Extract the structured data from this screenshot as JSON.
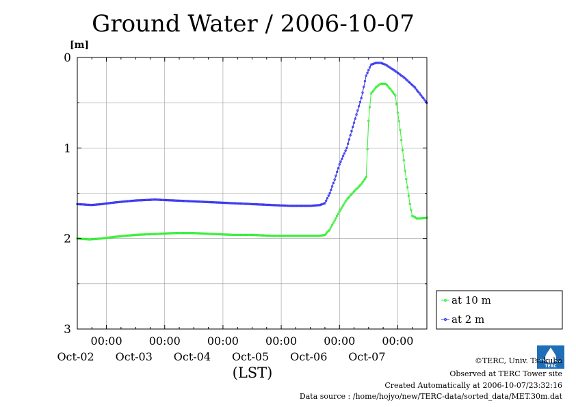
{
  "chart_data": {
    "type": "line",
    "title": "Ground Water / 2006-10-07",
    "ylabel": "[m]",
    "xlabel": "(LST)",
    "ylim": [
      3,
      0
    ],
    "y_inverted": true,
    "xlim": [
      "2006-10-01T12:00",
      "2006-10-07T12:00"
    ],
    "y_ticks": [
      "0",
      "1",
      "2",
      "3"
    ],
    "x_ticks": [
      {
        "x": "2006-10-02T00:00",
        "time": "00:00",
        "date": "Oct-02"
      },
      {
        "x": "2006-10-03T00:00",
        "time": "00:00",
        "date": "Oct-03"
      },
      {
        "x": "2006-10-04T00:00",
        "time": "00:00",
        "date": "Oct-04"
      },
      {
        "x": "2006-10-05T00:00",
        "time": "00:00",
        "date": "Oct-05"
      },
      {
        "x": "2006-10-06T00:00",
        "time": "00:00",
        "date": "Oct-06"
      },
      {
        "x": "2006-10-07T00:00",
        "time": "00:00",
        "date": "Oct-07"
      }
    ],
    "grid": true,
    "legend_position": "right",
    "series": [
      {
        "name": "at 10 m",
        "color": "#33ee33",
        "marker": "circle",
        "points": [
          [
            "2006-10-01T12:00",
            2.0
          ],
          [
            "2006-10-01T17:00",
            2.01
          ],
          [
            "2006-10-01T22:00",
            2.0
          ],
          [
            "2006-10-02T04:00",
            1.98
          ],
          [
            "2006-10-02T12:00",
            1.96
          ],
          [
            "2006-10-02T20:00",
            1.95
          ],
          [
            "2006-10-03T04:00",
            1.94
          ],
          [
            "2006-10-03T12:00",
            1.94
          ],
          [
            "2006-10-03T20:00",
            1.95
          ],
          [
            "2006-10-04T04:00",
            1.96
          ],
          [
            "2006-10-04T12:00",
            1.96
          ],
          [
            "2006-10-04T20:00",
            1.97
          ],
          [
            "2006-10-05T04:00",
            1.97
          ],
          [
            "2006-10-05T12:00",
            1.97
          ],
          [
            "2006-10-05T16:00",
            1.97
          ],
          [
            "2006-10-05T18:00",
            1.96
          ],
          [
            "2006-10-05T20:00",
            1.9
          ],
          [
            "2006-10-05T22:00",
            1.8
          ],
          [
            "2006-10-06T00:00",
            1.7
          ],
          [
            "2006-10-06T03:00",
            1.57
          ],
          [
            "2006-10-06T06:00",
            1.48
          ],
          [
            "2006-10-06T09:00",
            1.4
          ],
          [
            "2006-10-06T11:00",
            1.32
          ],
          [
            "2006-10-06T12:00",
            0.7
          ],
          [
            "2006-10-06T13:00",
            0.4
          ],
          [
            "2006-10-06T15:00",
            0.33
          ],
          [
            "2006-10-06T17:00",
            0.29
          ],
          [
            "2006-10-06T19:00",
            0.29
          ],
          [
            "2006-10-06T21:00",
            0.35
          ],
          [
            "2006-10-06T23:00",
            0.42
          ],
          [
            "2006-10-07T01:00",
            0.8
          ],
          [
            "2006-10-07T03:00",
            1.25
          ],
          [
            "2006-10-07T05:00",
            1.62
          ],
          [
            "2006-10-07T06:00",
            1.75
          ],
          [
            "2006-10-07T08:00",
            1.78
          ],
          [
            "2006-10-07T12:00",
            1.77
          ]
        ]
      },
      {
        "name": "at 2 m",
        "color": "#3333ee",
        "marker": "circle",
        "points": [
          [
            "2006-10-01T12:00",
            1.62
          ],
          [
            "2006-10-01T18:00",
            1.63
          ],
          [
            "2006-10-01T22:00",
            1.62
          ],
          [
            "2006-10-02T04:00",
            1.6
          ],
          [
            "2006-10-02T12:00",
            1.58
          ],
          [
            "2006-10-02T20:00",
            1.57
          ],
          [
            "2006-10-03T04:00",
            1.58
          ],
          [
            "2006-10-03T12:00",
            1.59
          ],
          [
            "2006-10-03T20:00",
            1.6
          ],
          [
            "2006-10-04T04:00",
            1.61
          ],
          [
            "2006-10-04T12:00",
            1.62
          ],
          [
            "2006-10-04T20:00",
            1.63
          ],
          [
            "2006-10-05T04:00",
            1.64
          ],
          [
            "2006-10-05T12:00",
            1.64
          ],
          [
            "2006-10-05T16:00",
            1.63
          ],
          [
            "2006-10-05T18:00",
            1.61
          ],
          [
            "2006-10-05T20:00",
            1.5
          ],
          [
            "2006-10-05T22:00",
            1.35
          ],
          [
            "2006-10-06T00:00",
            1.18
          ],
          [
            "2006-10-06T03:00",
            1.0
          ],
          [
            "2006-10-06T06:00",
            0.72
          ],
          [
            "2006-10-06T09:00",
            0.45
          ],
          [
            "2006-10-06T11:00",
            0.2
          ],
          [
            "2006-10-06T13:00",
            0.08
          ],
          [
            "2006-10-06T15:00",
            0.06
          ],
          [
            "2006-10-06T17:00",
            0.06
          ],
          [
            "2006-10-06T19:00",
            0.08
          ],
          [
            "2006-10-06T23:00",
            0.15
          ],
          [
            "2006-10-07T03:00",
            0.23
          ],
          [
            "2006-10-07T07:00",
            0.33
          ],
          [
            "2006-10-07T12:00",
            0.5
          ]
        ]
      }
    ]
  },
  "credits": {
    "copyright": "©TERC, Univ. Tsukuba",
    "observed": "Observed at TERC Tower site",
    "created": "Created Automatically at 2006-10-07/23:32:16",
    "source": "Data source : /home/hojyo/new/TERC-data/sorted_data/MET.30m.dat"
  },
  "logo": {
    "name": "terc-logo",
    "text": "TERC",
    "color": "#1f6fb8"
  }
}
